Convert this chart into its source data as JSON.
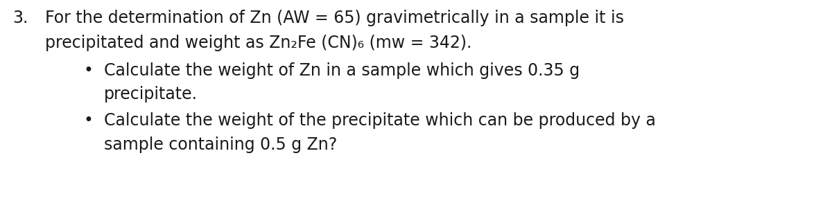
{
  "background_color": "#ffffff",
  "text_color": "#1a1a1a",
  "line1_num": "3.",
  "line1_text": "For the determination of Zn (AW = 65) gravimetrically in a sample it is",
  "line2_text": "precipitated and weight as Zn₂Fe (CN)₆ (mw = 342).",
  "bullet1_line1": "Calculate the weight of Zn in a sample which gives 0.35 g",
  "bullet1_line2": "precipitate.",
  "bullet2_line1": "Calculate the weight of the precipitate which can be produced by a",
  "bullet2_line2": "sample containing 0.5 g Zn?",
  "bullet_char": "•",
  "fig_width": 12.0,
  "fig_height": 3.06,
  "dpi": 100,
  "font_size": 17.0,
  "font_family": "DejaVu Sans"
}
